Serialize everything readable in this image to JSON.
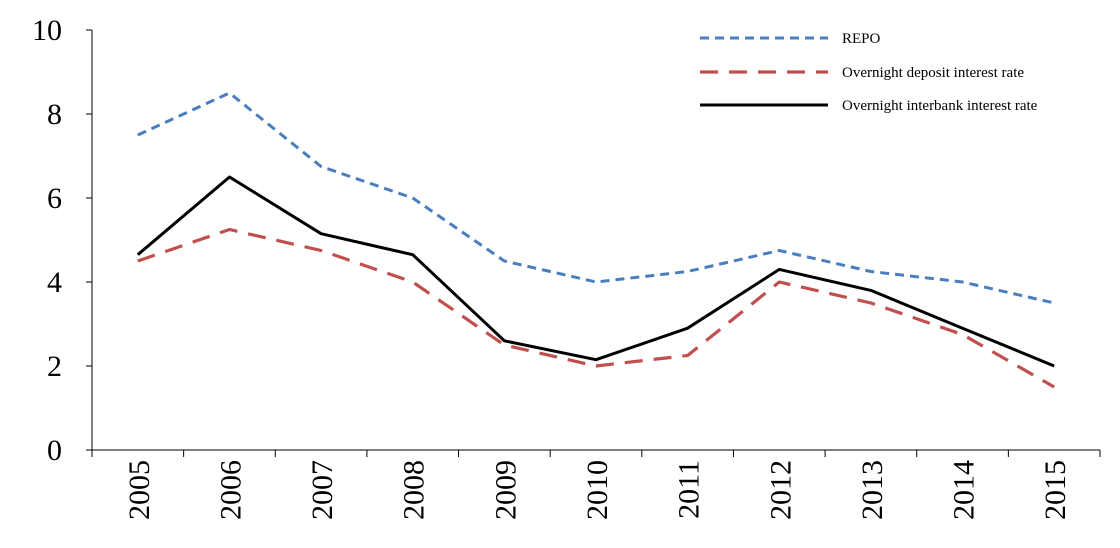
{
  "chart_data": {
    "type": "line",
    "title": "",
    "xlabel": "",
    "ylabel": "",
    "categories": [
      "2005",
      "2006",
      "2007",
      "2008",
      "2009",
      "2010",
      "2011",
      "2012",
      "2013",
      "2014",
      "2015"
    ],
    "ylim": [
      0,
      10
    ],
    "yticks": [
      0,
      2,
      4,
      6,
      8,
      10
    ],
    "grid": false,
    "legend_position": "top-right",
    "series": [
      {
        "name": "REPO",
        "color": "#4a7ebf",
        "style": "dotted",
        "values": [
          7.5,
          8.5,
          6.75,
          6.0,
          4.5,
          4.0,
          4.25,
          4.75,
          4.25,
          4.0,
          3.5
        ]
      },
      {
        "name": "Overnight deposit interest rate",
        "color": "#c0504d",
        "style": "dashed",
        "values": [
          4.5,
          5.25,
          4.75,
          4.0,
          2.5,
          2.0,
          2.25,
          4.0,
          3.5,
          2.75,
          1.5
        ]
      },
      {
        "name": "Overnight interbank interest rate",
        "color": "#000000",
        "style": "solid",
        "values": [
          4.65,
          6.5,
          5.15,
          4.65,
          2.6,
          2.15,
          2.9,
          4.3,
          3.8,
          2.9,
          2.0
        ]
      }
    ]
  }
}
